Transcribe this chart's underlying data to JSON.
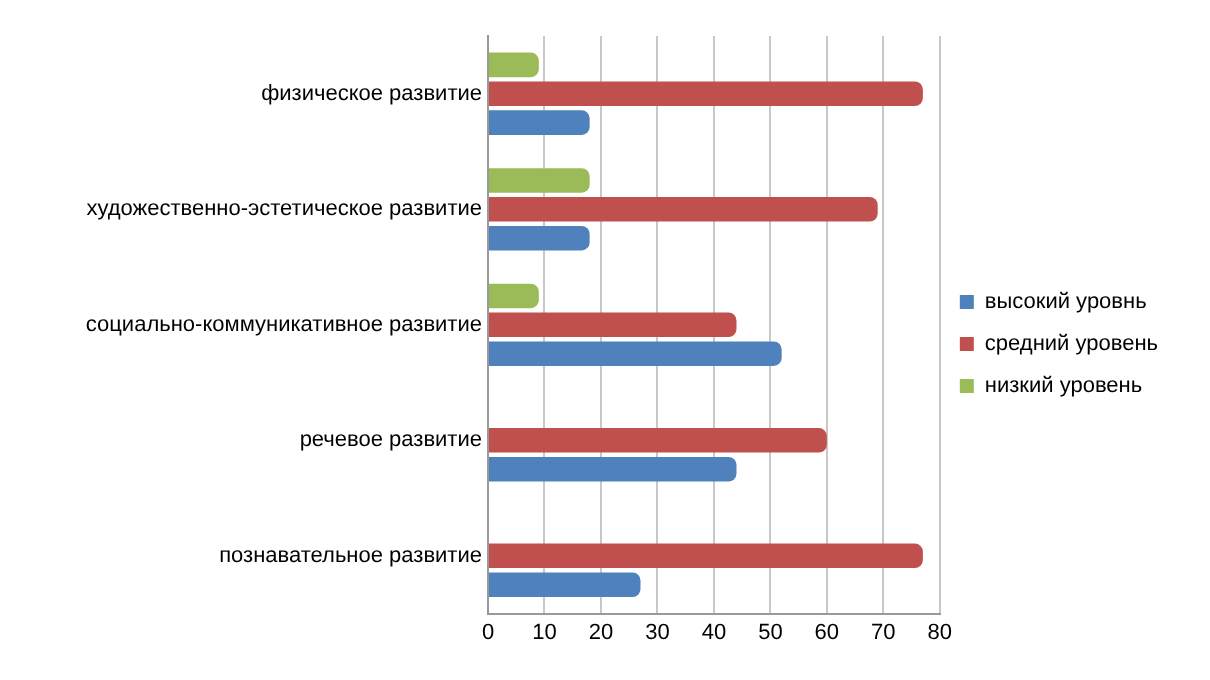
{
  "chart_data": {
    "type": "bar",
    "orientation": "horizontal",
    "categories": [
      "физическое развитие",
      "художественно-эстетическое развитие",
      "социально-коммуникативное развитие",
      "речевое развитие",
      "познавательное развитие"
    ],
    "series": [
      {
        "name": "высокий уровнь",
        "color": "#4f81bd",
        "values": [
          18,
          18,
          52,
          44,
          27
        ]
      },
      {
        "name": "средний уровень",
        "color": "#c0504d",
        "values": [
          77,
          69,
          44,
          60,
          77
        ]
      },
      {
        "name": "низкий уровень",
        "color": "#9bbb59",
        "values": [
          9,
          18,
          9,
          0,
          0
        ]
      }
    ],
    "xlim": [
      0,
      80
    ],
    "xticks": [
      0,
      10,
      20,
      30,
      40,
      50,
      60,
      70,
      80
    ],
    "grid": "x",
    "legend": "right"
  }
}
